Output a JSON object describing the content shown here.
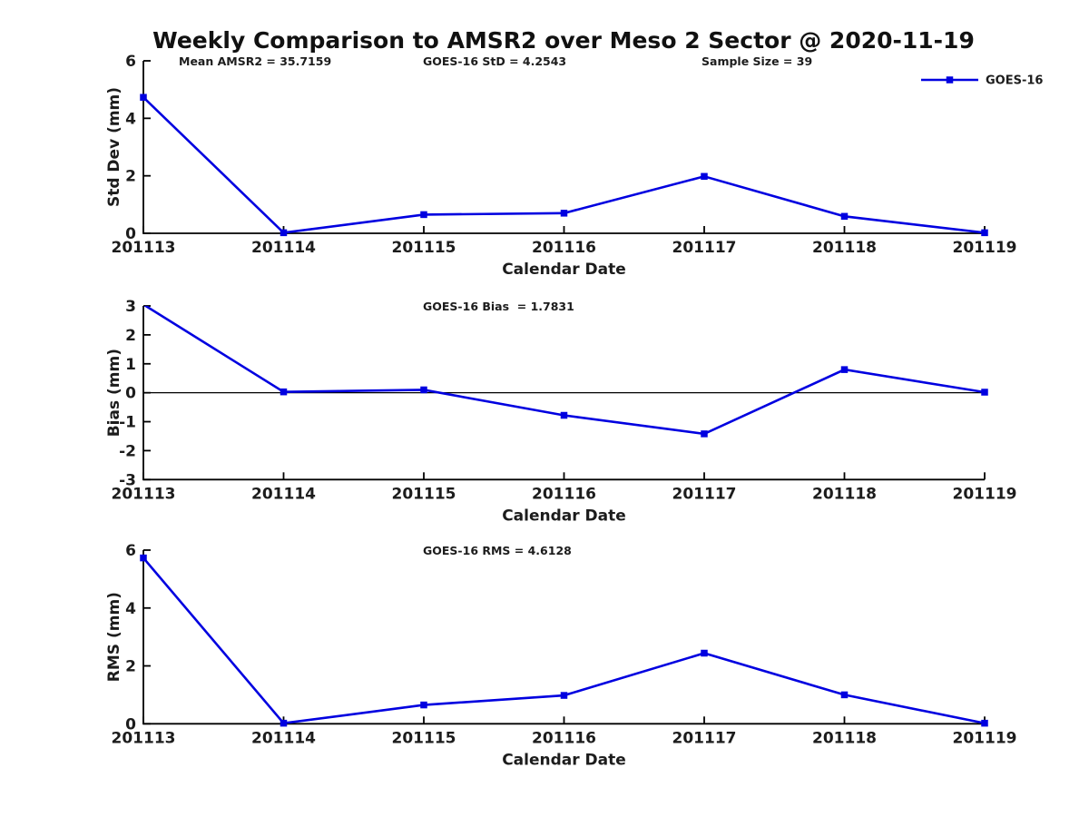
{
  "figure": {
    "title": "Weekly Comparison to AMSR2 over Meso 2 Sector @ 2020-11-19",
    "background": "#ffffff",
    "text_color": "#1c1c1c",
    "axis_color": "#000000",
    "series_color": "#0000e0",
    "legend": {
      "label": "GOES-16",
      "position": "top-right",
      "marker": "square"
    }
  },
  "chart_data": [
    {
      "type": "line",
      "title": "",
      "ylabel": "Std Dev (mm)",
      "xlabel": "Calendar Date",
      "ylim": [
        0,
        6
      ],
      "yticks": [
        0,
        2,
        4,
        6
      ],
      "categories": [
        "201113",
        "201114",
        "201115",
        "201116",
        "201117",
        "201118",
        "201119"
      ],
      "series": [
        {
          "name": "GOES-16",
          "marker": "square",
          "values": [
            4.73,
            0.02,
            0.65,
            0.7,
            1.98,
            0.59,
            0.02
          ]
        }
      ],
      "annotations": [
        "Mean AMSR2 = 35.7159",
        "GOES-16 StD = 4.2543",
        "Sample Size = 39"
      ],
      "zero_line": false,
      "legend_visible": true,
      "grid": false
    },
    {
      "type": "line",
      "title": "",
      "ylabel": "Bias (mm)",
      "xlabel": "Calendar Date",
      "ylim": [
        -3,
        3
      ],
      "yticks": [
        3,
        2,
        1,
        0,
        -1,
        -2,
        -3
      ],
      "categories": [
        "201113",
        "201114",
        "201115",
        "201116",
        "201117",
        "201118",
        "201119"
      ],
      "series": [
        {
          "name": "GOES-16",
          "marker": "square",
          "values": [
            3.05,
            0.03,
            0.1,
            -0.78,
            -1.42,
            0.8,
            0.02
          ]
        }
      ],
      "annotations": [
        "GOES-16 Bias  = 1.7831"
      ],
      "zero_line": true,
      "legend_visible": false,
      "grid": false
    },
    {
      "type": "line",
      "title": "",
      "ylabel": "RMS (mm)",
      "xlabel": "Calendar Date",
      "ylim": [
        0,
        6
      ],
      "yticks": [
        0,
        2,
        4,
        6
      ],
      "categories": [
        "201113",
        "201114",
        "201115",
        "201116",
        "201117",
        "201118",
        "201119"
      ],
      "series": [
        {
          "name": "GOES-16",
          "marker": "square",
          "values": [
            5.73,
            0.02,
            0.65,
            0.98,
            2.44,
            1.0,
            0.02
          ]
        }
      ],
      "annotations": [
        "GOES-16 RMS = 4.6128"
      ],
      "zero_line": false,
      "legend_visible": false,
      "grid": false
    }
  ]
}
